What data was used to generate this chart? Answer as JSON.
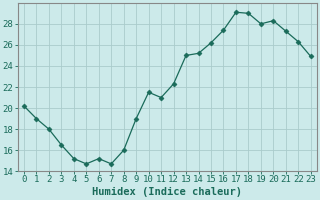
{
  "x": [
    0,
    1,
    2,
    3,
    4,
    5,
    6,
    7,
    8,
    9,
    10,
    11,
    12,
    13,
    14,
    15,
    16,
    17,
    18,
    19,
    20,
    21,
    22,
    23
  ],
  "y": [
    20.2,
    19.0,
    18.0,
    16.5,
    15.2,
    14.7,
    15.2,
    14.7,
    16.0,
    19.0,
    21.5,
    21.0,
    22.3,
    25.0,
    25.2,
    26.2,
    27.4,
    29.1,
    29.0,
    28.0,
    28.3,
    27.3,
    26.3,
    24.9
  ],
  "line_color": "#1a6b5a",
  "marker": "D",
  "marker_size": 2.5,
  "bg_color": "#cceaea",
  "grid_color": "#aacccc",
  "xlabel": "Humidex (Indice chaleur)",
  "ylim": [
    14,
    30
  ],
  "yticks": [
    14,
    16,
    18,
    20,
    22,
    24,
    26,
    28
  ],
  "xticks": [
    0,
    1,
    2,
    3,
    4,
    5,
    6,
    7,
    8,
    9,
    10,
    11,
    12,
    13,
    14,
    15,
    16,
    17,
    18,
    19,
    20,
    21,
    22,
    23
  ],
  "xlabel_fontsize": 7.5,
  "tick_fontsize": 6.5,
  "spine_color": "#888888"
}
